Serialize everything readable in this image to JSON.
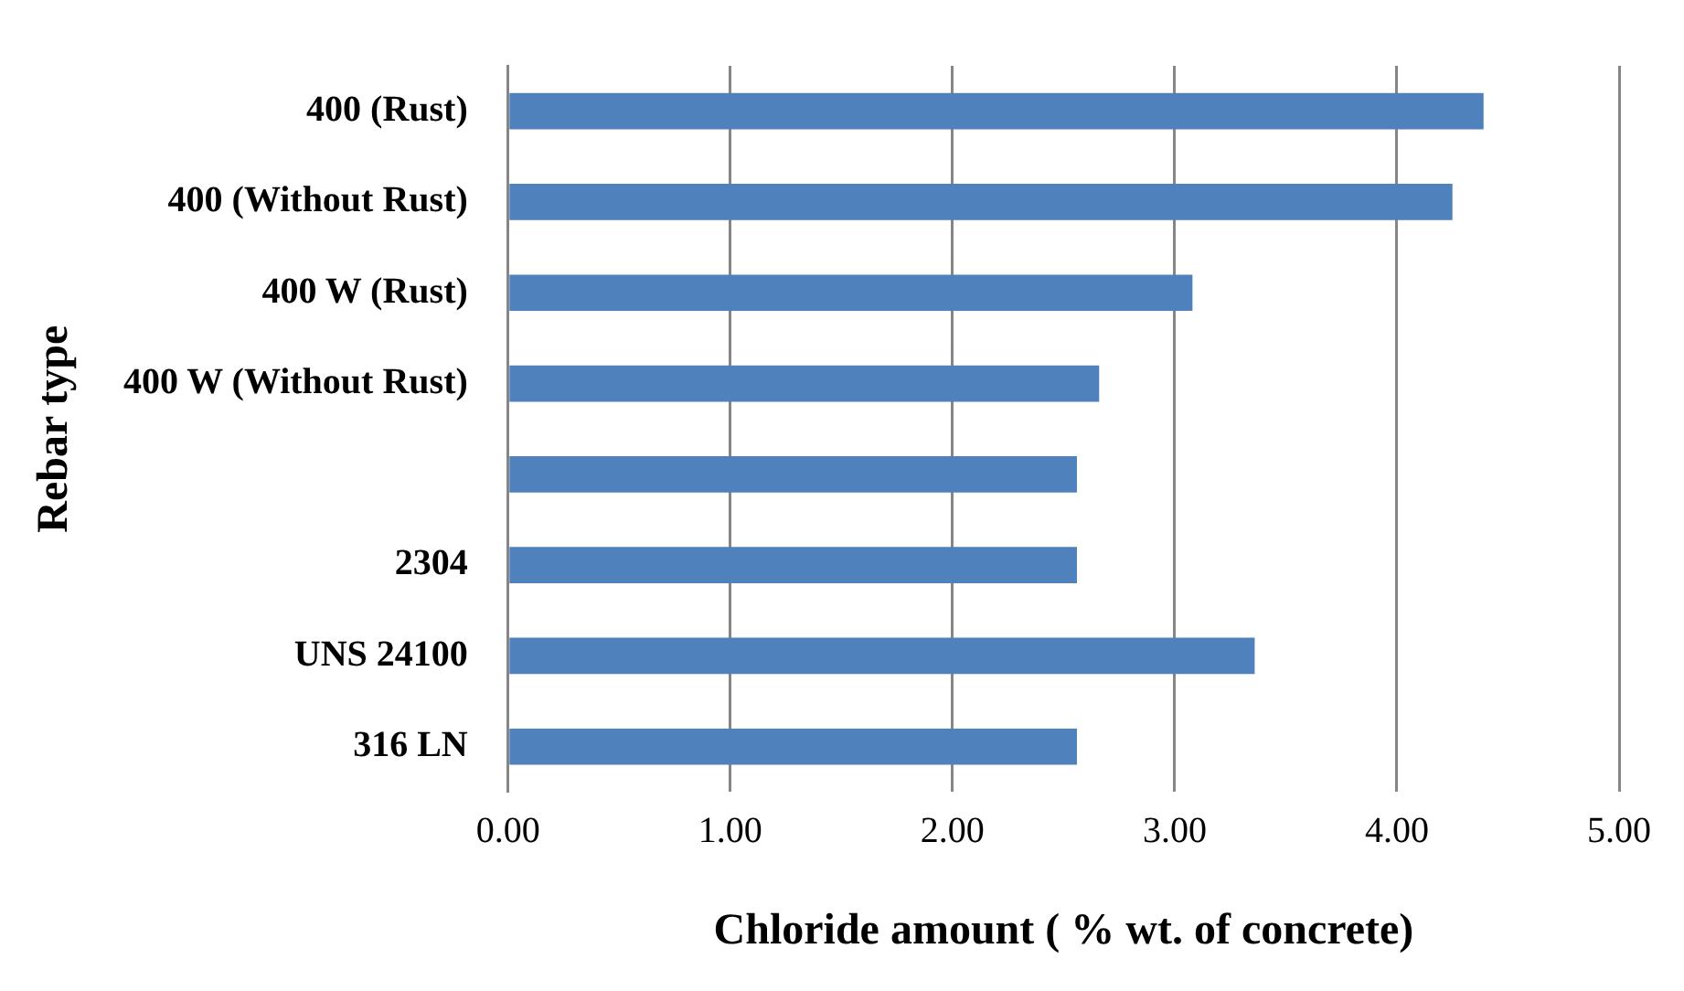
{
  "chart_data": {
    "type": "bar",
    "orientation": "horizontal",
    "xlabel": "Chloride amount ( % wt. of concrete)",
    "ylabel": "Rebar type",
    "categories": [
      "400 (Rust)",
      "400 (Without Rust)",
      "400 W (Rust)",
      "400 W (Without Rust)",
      null,
      "2304",
      "UNS 24100",
      "316 LN"
    ],
    "values": [
      4.39,
      4.25,
      3.08,
      2.66,
      2.56,
      2.56,
      3.36,
      2.56
    ],
    "color": "#4f81bd",
    "xlim": [
      0,
      5
    ],
    "xticks": [
      {
        "value": 0,
        "label": "0.00"
      },
      {
        "value": 1,
        "label": "1.00"
      },
      {
        "value": 2,
        "label": "2.00"
      },
      {
        "value": 3,
        "label": "3.00"
      },
      {
        "value": 4,
        "label": "4.00"
      },
      {
        "value": 5,
        "label": "5.00"
      }
    ],
    "grid": "x",
    "legend": false
  }
}
